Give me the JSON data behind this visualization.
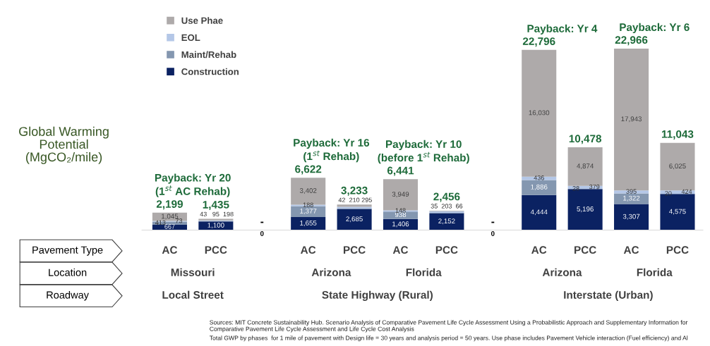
{
  "chart_data": {
    "type": "bar",
    "stacked": true,
    "ylabel": "Global Warming\nPotential\n(MgCO₂/mile)",
    "categories": [
      "AC",
      "PCC",
      null,
      "AC",
      "PCC",
      "AC",
      "PCC",
      null,
      "AC",
      "PCC",
      "AC",
      "PCC"
    ],
    "series": [
      {
        "name": "Construction",
        "color": "#0b2262",
        "values": [
          667,
          1100,
          0,
          1655,
          2685,
          1406,
          2152,
          0,
          4444,
          5196,
          3307,
          4575
        ],
        "value_labels": [
          "667",
          "1,100",
          null,
          "1,655",
          "2,685",
          "1,406",
          "2,152",
          null,
          "4,444",
          "5,196",
          "3,307",
          "4,575"
        ]
      },
      {
        "name": "Maint/Rehab",
        "color": "#8497b0",
        "values": [
          413,
          43,
          0,
          1377,
          42,
          938,
          35,
          0,
          1886,
          28,
          1322,
          20
        ],
        "value_labels": [
          "413",
          "43",
          null,
          "1,377",
          "42",
          "938",
          "35",
          null,
          "1,886",
          "28",
          "1,322",
          "20"
        ]
      },
      {
        "name": "EOL",
        "color": "#b4c7e7",
        "values": [
          73,
          95,
          0,
          188,
          210,
          148,
          203,
          0,
          436,
          379,
          395,
          424
        ],
        "value_labels": [
          "73",
          "95",
          null,
          "188",
          "210",
          "148",
          "203",
          null,
          "436",
          "379",
          "395",
          "424"
        ]
      },
      {
        "name": "Use Phae",
        "color": "#aeaaaa",
        "values": [
          1045,
          198,
          0,
          3402,
          295,
          3949,
          66,
          0,
          16030,
          4874,
          17943,
          6025
        ],
        "value_labels": [
          "1,045",
          "198",
          null,
          "3,402",
          "295",
          "3,949",
          "66",
          null,
          "16,030",
          "4,874",
          "17,943",
          "6,025"
        ]
      }
    ],
    "totals": [
      "2,199",
      "1,435",
      "-",
      "6,622",
      "3,233",
      "6,441",
      "2,456",
      "-",
      "22,796",
      "10,478",
      "22,966",
      "11,043"
    ],
    "legend": "top left",
    "annotations": [
      "Payback: Yr 20\n(1$^{st}$ AC Rehab)",
      "Payback: Yr 16\n(1$^{st}$ Rehab)",
      "Payback: Yr 10\n(before 1$^{st}$ Rehab)",
      "Payback: Yr 4",
      "Payback: Yr 6",
      "0",
      "0",
      "Pavement Type",
      "Location",
      "Roadway",
      "Missouri",
      "Arizona",
      "Florida",
      "Arizona",
      "Florida",
      "Local Street",
      "State Highway (Rural)",
      "Interstate (Urban)",
      "Sources: MIT Concrete Sustainability Hub. Scenario Analysis of Comparative Pavement Life Cycle Assessment Using a Probabilistic Approach and Supplementary Information for Comparative Pavement Life Cycle Assessment and Life Cycle Cost Analysis",
      "Total GWP by phases  for 1 mile of pavement with Design life = 30 years and analysis period = 50 years. Use phase includes Pavement Vehicle interaction (Fuel efficiency) and Al"
    ]
  }
}
